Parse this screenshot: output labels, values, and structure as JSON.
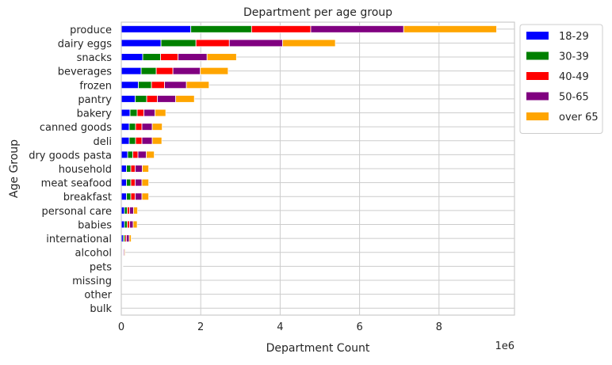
{
  "chart_data": {
    "type": "bar",
    "orientation": "horizontal",
    "stacked": true,
    "title": "Department per age group",
    "xlabel": "Department Count",
    "ylabel": "Age Group",
    "x_offset_text": "1e6",
    "xlim": [
      0,
      9.9
    ],
    "x_ticks": [
      0,
      2,
      4,
      6,
      8
    ],
    "grid": true,
    "legend_position": "upper-right-outside",
    "categories": [
      "produce",
      "dairy eggs",
      "snacks",
      "beverages",
      "frozen",
      "pantry",
      "bakery",
      "canned goods",
      "deli",
      "dry goods pasta",
      "household",
      "meat seafood",
      "breakfast",
      "personal care",
      "babies",
      "international",
      "alcohol",
      "pets",
      "missing",
      "other",
      "bulk"
    ],
    "series": [
      {
        "name": "18-29",
        "color": "#0000ff",
        "values": [
          1.75,
          1.0,
          0.54,
          0.5,
          0.43,
          0.35,
          0.22,
          0.2,
          0.2,
          0.16,
          0.13,
          0.13,
          0.13,
          0.08,
          0.08,
          0.05,
          0.02,
          0.01,
          0.01,
          0.0,
          0.0
        ]
      },
      {
        "name": "30-39",
        "color": "#008000",
        "values": [
          1.53,
          0.88,
          0.45,
          0.38,
          0.33,
          0.29,
          0.18,
          0.16,
          0.16,
          0.13,
          0.11,
          0.11,
          0.11,
          0.07,
          0.07,
          0.04,
          0.015,
          0.005,
          0.005,
          0.0,
          0.0
        ]
      },
      {
        "name": "40-49",
        "color": "#ff0000",
        "values": [
          1.49,
          0.84,
          0.44,
          0.42,
          0.33,
          0.27,
          0.17,
          0.16,
          0.16,
          0.13,
          0.11,
          0.11,
          0.11,
          0.06,
          0.06,
          0.04,
          0.015,
          0.005,
          0.005,
          0.0,
          0.0
        ]
      },
      {
        "name": "50-65",
        "color": "#800080",
        "values": [
          2.34,
          1.34,
          0.73,
          0.69,
          0.55,
          0.46,
          0.28,
          0.26,
          0.26,
          0.21,
          0.18,
          0.17,
          0.17,
          0.1,
          0.09,
          0.07,
          0.025,
          0.01,
          0.005,
          0.0,
          0.0
        ]
      },
      {
        "name": "over 65",
        "color": "#ffa500",
        "values": [
          2.34,
          1.33,
          0.74,
          0.7,
          0.57,
          0.47,
          0.27,
          0.25,
          0.24,
          0.2,
          0.16,
          0.17,
          0.17,
          0.1,
          0.1,
          0.05,
          0.02,
          0.005,
          0.005,
          0.0,
          0.0
        ]
      }
    ]
  }
}
